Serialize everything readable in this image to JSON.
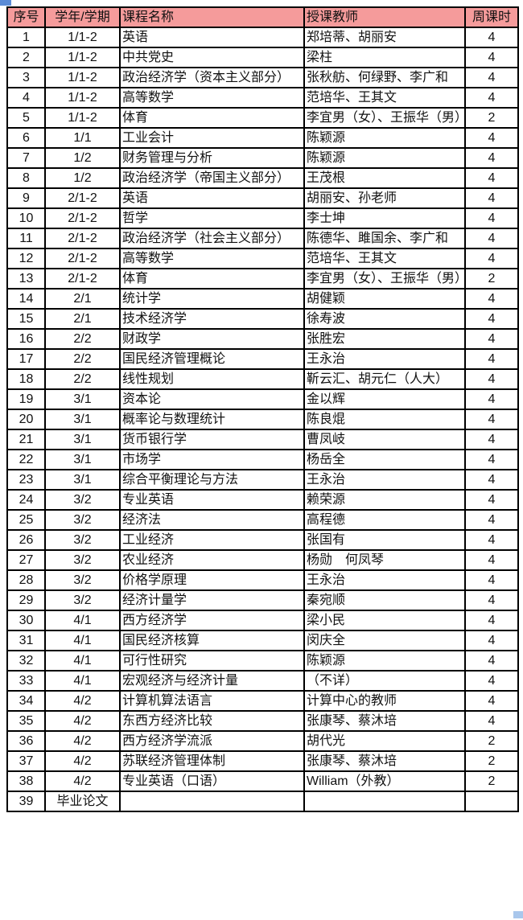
{
  "colors": {
    "header_bg": "#F59B9B",
    "border": "#000000",
    "text": "#111111",
    "handle_top_left": "#5B8BD6",
    "handle_bottom_right": "#A9C7EC"
  },
  "decorations": {
    "top_left_handle": "small-blue-rect",
    "bottom_right_handle": "small-light-blue-rect"
  },
  "table": {
    "columns": [
      {
        "key": "index",
        "label": "序号"
      },
      {
        "key": "term",
        "label": "学年/学期"
      },
      {
        "key": "course",
        "label": "课程名称"
      },
      {
        "key": "teacher",
        "label": "授课教师"
      },
      {
        "key": "hours",
        "label": "周课时"
      }
    ],
    "rows": [
      {
        "index": "1",
        "term": "1/1-2",
        "course": "英语",
        "teacher": "郑培蒂、胡丽安",
        "hours": "4",
        "tall": false
      },
      {
        "index": "2",
        "term": "1/1-2",
        "course": "中共党史",
        "teacher": "梁柱",
        "hours": "4",
        "tall": false
      },
      {
        "index": "3",
        "term": "1/1-2",
        "course": "政治经济学（资本主义部分）",
        "teacher": "张秋舫、何绿野、李广和",
        "hours": "4",
        "tall": true
      },
      {
        "index": "4",
        "term": "1/1-2",
        "course": "高等数学",
        "teacher": "范培华、王其文",
        "hours": "4",
        "tall": false
      },
      {
        "index": "5",
        "term": "1/1-2",
        "course": "体育",
        "teacher": "李宜男（女）、王振华（男）",
        "hours": "2",
        "tall": true
      },
      {
        "index": "6",
        "term": "1/1",
        "course": "工业会计",
        "teacher": "陈颖源",
        "hours": "4",
        "tall": false
      },
      {
        "index": "7",
        "term": "1/2",
        "course": "财务管理与分析",
        "teacher": "陈颖源",
        "hours": "4",
        "tall": false
      },
      {
        "index": "8",
        "term": "1/2",
        "course": "政治经济学（帝国主义部分）",
        "teacher": "王茂根",
        "hours": "4",
        "tall": true
      },
      {
        "index": "9",
        "term": "2/1-2",
        "course": "英语",
        "teacher": "胡丽安、孙老师",
        "hours": "4",
        "tall": false
      },
      {
        "index": "10",
        "term": "2/1-2",
        "course": "哲学",
        "teacher": "李士坤",
        "hours": "4",
        "tall": false
      },
      {
        "index": "11",
        "term": "2/1-2",
        "course": "政治经济学（社会主义部分）",
        "teacher": "陈德华、雎国余、李广和",
        "hours": "4",
        "tall": true
      },
      {
        "index": "12",
        "term": "2/1-2",
        "course": "高等数学",
        "teacher": "范培华、王其文",
        "hours": "4",
        "tall": false
      },
      {
        "index": "13",
        "term": "2/1-2",
        "course": "体育",
        "teacher": "李宜男（女）、王振华（男）",
        "hours": "2",
        "tall": true
      },
      {
        "index": "14",
        "term": "2/1",
        "course": "统计学",
        "teacher": "胡健颖",
        "hours": "4",
        "tall": false
      },
      {
        "index": "15",
        "term": "2/1",
        "course": "技术经济学",
        "teacher": "徐寿波",
        "hours": "4",
        "tall": false
      },
      {
        "index": "16",
        "term": "2/2",
        "course": "财政学",
        "teacher": "张胜宏",
        "hours": "4",
        "tall": false
      },
      {
        "index": "17",
        "term": "2/2",
        "course": "国民经济管理概论",
        "teacher": "王永治",
        "hours": "4",
        "tall": false
      },
      {
        "index": "18",
        "term": "2/2",
        "course": "线性规划",
        "teacher": "靳云汇、胡元仁（人大）",
        "hours": "4",
        "tall": false
      },
      {
        "index": "19",
        "term": "3/1",
        "course": "资本论",
        "teacher": "金以辉",
        "hours": "4",
        "tall": false
      },
      {
        "index": "20",
        "term": "3/1",
        "course": "概率论与数理统计",
        "teacher": "陈良焜",
        "hours": "4",
        "tall": false
      },
      {
        "index": "21",
        "term": "3/1",
        "course": "货币银行学",
        "teacher": "曹凤岐",
        "hours": "4",
        "tall": false
      },
      {
        "index": "22",
        "term": "3/1",
        "course": "市场学",
        "teacher": "杨岳全",
        "hours": "4",
        "tall": false
      },
      {
        "index": "23",
        "term": "3/1",
        "course": "综合平衡理论与方法",
        "teacher": "王永治",
        "hours": "4",
        "tall": false
      },
      {
        "index": "24",
        "term": "3/2",
        "course": "专业英语",
        "teacher": "赖荣源",
        "hours": "4",
        "tall": false
      },
      {
        "index": "25",
        "term": "3/2",
        "course": "经济法",
        "teacher": "高程德",
        "hours": "4",
        "tall": false
      },
      {
        "index": "26",
        "term": "3/2",
        "course": "工业经济",
        "teacher": "张国有",
        "hours": "4",
        "tall": false
      },
      {
        "index": "27",
        "term": "3/2",
        "course": "农业经济",
        "teacher": "杨勋　何凤琴",
        "hours": "4",
        "tall": false
      },
      {
        "index": "28",
        "term": "3/2",
        "course": "价格学原理",
        "teacher": "王永治",
        "hours": "4",
        "tall": false
      },
      {
        "index": "29",
        "term": "3/2",
        "course": "经济计量学",
        "teacher": "秦宛顺",
        "hours": "4",
        "tall": false
      },
      {
        "index": "30",
        "term": "4/1",
        "course": "西方经济学",
        "teacher": "梁小民",
        "hours": "4",
        "tall": false
      },
      {
        "index": "31",
        "term": "4/1",
        "course": "国民经济核算",
        "teacher": "闵庆全",
        "hours": "4",
        "tall": false
      },
      {
        "index": "32",
        "term": "4/1",
        "course": "可行性研究",
        "teacher": "陈颖源",
        "hours": "4",
        "tall": false
      },
      {
        "index": "33",
        "term": "4/1",
        "course": "宏观经济与经济计量",
        "teacher": "（不详）",
        "hours": "4",
        "tall": false
      },
      {
        "index": "34",
        "term": "4/2",
        "course": "计算机算法语言",
        "teacher": "计算中心的教师",
        "hours": "4",
        "tall": false
      },
      {
        "index": "35",
        "term": "4/2",
        "course": "东西方经济比较",
        "teacher": "张康琴、蔡沐培",
        "hours": "4",
        "tall": false
      },
      {
        "index": "36",
        "term": "4/2",
        "course": "西方经济学流派",
        "teacher": "胡代光",
        "hours": "2",
        "tall": false
      },
      {
        "index": "37",
        "term": "4/2",
        "course": "苏联经济管理体制",
        "teacher": "张康琴、蔡沐培",
        "hours": "2",
        "tall": false
      },
      {
        "index": "38",
        "term": "4/2",
        "course": "专业英语（口语）",
        "teacher": "William（外教）",
        "hours": "2",
        "tall": false
      },
      {
        "index": "39",
        "term": "毕业论文",
        "course": "",
        "teacher": "",
        "hours": "",
        "tall": false
      }
    ]
  }
}
